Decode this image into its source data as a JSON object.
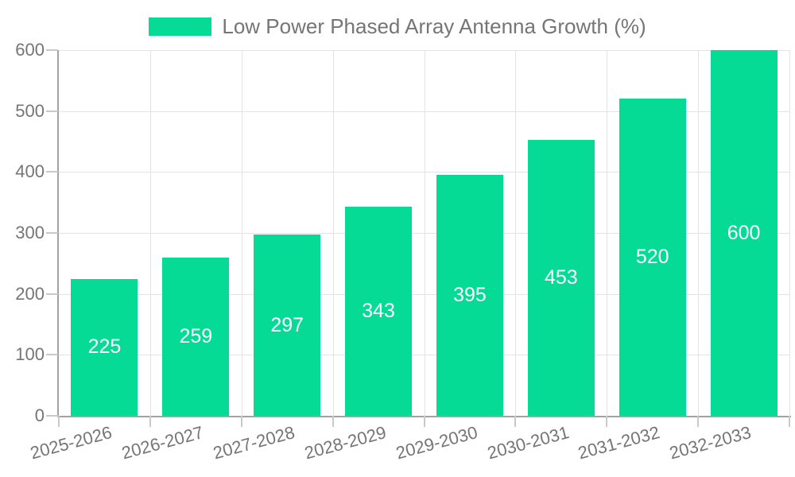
{
  "legend": {
    "label": "Low Power Phased Array Antenna Growth (%)"
  },
  "chart_data": {
    "type": "bar",
    "title": "Low Power Phased Array Antenna Growth (%)",
    "categories": [
      "2025-2026",
      "2026-2027",
      "2027-2028",
      "2028-2029",
      "2029-2030",
      "2030-2031",
      "2031-2032",
      "2032-2033"
    ],
    "values": [
      225,
      259,
      297,
      343,
      395,
      453,
      520,
      600
    ],
    "xlabel": "",
    "ylabel": "",
    "ylim": [
      0,
      600
    ],
    "yticks": [
      0,
      100,
      200,
      300,
      400,
      500,
      600
    ],
    "grid": true,
    "legend_position": "top-center",
    "x_label_rotation_deg": -15,
    "bar_color": "#05DB94",
    "value_label_color": "#FFFFFF"
  },
  "colors": {
    "background": "#FFFFFF",
    "bar": "#05DB94",
    "text": "#757575",
    "gridline": "#E3E3E3",
    "axis_line": "#A2A2A2",
    "tick": "#C9C9C9",
    "value_label": "#FFFFFF"
  }
}
